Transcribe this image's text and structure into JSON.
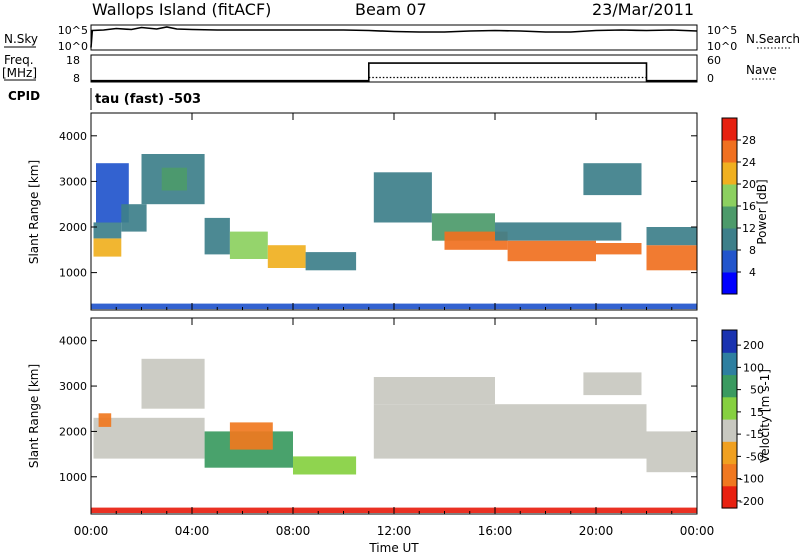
{
  "header": {
    "station": "Wallops Island (fitACF)",
    "beam": "Beam 07",
    "date": "23/Mar/2011"
  },
  "nsky_panel": {
    "left_label": "N.Sky",
    "left_ticks": [
      "10^5",
      "10^0"
    ],
    "right_ticks": [
      "10^5",
      "10^0"
    ],
    "right_label": "N.Search",
    "nsky_trace": [
      {
        "t": 0.0,
        "v": 0.5
      },
      {
        "t": 0.05,
        "v": 3.9
      },
      {
        "t": 0.5,
        "v": 4.0
      },
      {
        "t": 1.0,
        "v": 4.3
      },
      {
        "t": 1.6,
        "v": 4.1
      },
      {
        "t": 2.0,
        "v": 4.5
      },
      {
        "t": 2.6,
        "v": 4.2
      },
      {
        "t": 3.0,
        "v": 4.6
      },
      {
        "t": 3.4,
        "v": 4.2
      },
      {
        "t": 4.0,
        "v": 4.1
      },
      {
        "t": 5.0,
        "v": 4.0
      },
      {
        "t": 6.0,
        "v": 4.0
      },
      {
        "t": 7.0,
        "v": 4.0
      },
      {
        "t": 8.0,
        "v": 4.0
      },
      {
        "t": 9.0,
        "v": 4.0
      },
      {
        "t": 10.0,
        "v": 4.0
      },
      {
        "t": 11.0,
        "v": 3.9
      },
      {
        "t": 12.0,
        "v": 3.7
      },
      {
        "t": 13.0,
        "v": 3.6
      },
      {
        "t": 14.0,
        "v": 3.6
      },
      {
        "t": 15.0,
        "v": 3.8
      },
      {
        "t": 16.0,
        "v": 3.9
      },
      {
        "t": 17.0,
        "v": 3.8
      },
      {
        "t": 18.0,
        "v": 3.6
      },
      {
        "t": 19.0,
        "v": 3.6
      },
      {
        "t": 20.0,
        "v": 3.9
      },
      {
        "t": 21.0,
        "v": 4.0
      },
      {
        "t": 22.0,
        "v": 3.9
      },
      {
        "t": 23.0,
        "v": 4.0
      },
      {
        "t": 24.0,
        "v": 3.8
      }
    ]
  },
  "freq_panel": {
    "left_label_line1": "Freq.",
    "left_label_line2": "[MHz]",
    "left_ticks": [
      "18",
      "8"
    ],
    "right_ticks": [
      "60",
      "0"
    ],
    "right_label": "Nave",
    "cpid_label": "CPID",
    "cpid_text": "tau (fast) -503",
    "freq_trace": [
      {
        "t": 0.0,
        "v": 8.5
      },
      {
        "t": 11.0,
        "v": 8.5
      },
      {
        "t": 11.0,
        "v": 15.0
      },
      {
        "t": 22.0,
        "v": 15.0
      },
      {
        "t": 22.0,
        "v": 8.5
      },
      {
        "t": 24.0,
        "v": 8.5
      }
    ],
    "nave_trace": [
      {
        "t": 11.0,
        "v": 10
      },
      {
        "t": 22.0,
        "v": 10
      }
    ]
  },
  "chart_data": [
    {
      "type": "heatmap",
      "name": "power",
      "ylabel": "Slant Range [km]",
      "yticks": [
        "4000",
        "3000",
        "2000",
        "1000"
      ],
      "ylim": [
        180,
        4500
      ],
      "xlim": [
        0,
        24
      ],
      "colorbar_label": "Power [dB]",
      "colorbar_ticks": [
        "28",
        "24",
        "20",
        "16",
        "12",
        "8",
        "4"
      ],
      "colorbar_colors": [
        "#0000ff",
        "#2255cc",
        "#3d7f8a",
        "#4c9a6a",
        "#8cd060",
        "#f0b020",
        "#f07020",
        "#e62010"
      ],
      "regions": [
        {
          "t0": 0.1,
          "t1": 1.2,
          "r0": 1350,
          "r1": 1750,
          "value": 22
        },
        {
          "t0": 0.1,
          "t1": 1.2,
          "r0": 1750,
          "r1": 2100,
          "value": 10
        },
        {
          "t0": 0.2,
          "t1": 1.5,
          "r0": 2100,
          "r1": 3400,
          "value": 6
        },
        {
          "t0": 1.2,
          "t1": 2.2,
          "r0": 1900,
          "r1": 2500,
          "value": 10
        },
        {
          "t0": 2.0,
          "t1": 4.5,
          "r0": 2500,
          "r1": 3600,
          "value": 9
        },
        {
          "t0": 2.8,
          "t1": 3.8,
          "r0": 2800,
          "r1": 3300,
          "value": 13
        },
        {
          "t0": 4.5,
          "t1": 5.5,
          "r0": 1400,
          "r1": 2200,
          "value": 11
        },
        {
          "t0": 5.5,
          "t1": 7.0,
          "r0": 1300,
          "r1": 1900,
          "value": 16
        },
        {
          "t0": 7.0,
          "t1": 8.5,
          "r0": 1100,
          "r1": 1600,
          "value": 20
        },
        {
          "t0": 8.5,
          "t1": 10.5,
          "r0": 1050,
          "r1": 1450,
          "value": 9
        },
        {
          "t0": 11.2,
          "t1": 13.5,
          "r0": 2100,
          "r1": 3200,
          "value": 8
        },
        {
          "t0": 13.5,
          "t1": 16.0,
          "r0": 1700,
          "r1": 2300,
          "value": 14
        },
        {
          "t0": 14.0,
          "t1": 16.5,
          "r0": 1500,
          "r1": 1900,
          "value": 24
        },
        {
          "t0": 16.5,
          "t1": 20.0,
          "r0": 1250,
          "r1": 1700,
          "value": 27
        },
        {
          "t0": 16.0,
          "t1": 21.0,
          "r0": 1700,
          "r1": 2100,
          "value": 11
        },
        {
          "t0": 19.5,
          "t1": 21.8,
          "r0": 2700,
          "r1": 3400,
          "value": 10
        },
        {
          "t0": 20.0,
          "t1": 21.8,
          "r0": 1400,
          "r1": 1650,
          "value": 25
        },
        {
          "t0": 22.0,
          "t1": 24.0,
          "r0": 1050,
          "r1": 1600,
          "value": 26
        },
        {
          "t0": 22.0,
          "t1": 24.0,
          "r0": 1600,
          "r1": 2000,
          "value": 10
        },
        {
          "t0": 0.0,
          "t1": 24.0,
          "r0": 200,
          "r1": 320,
          "value": 6
        }
      ]
    },
    {
      "type": "heatmap",
      "name": "velocity",
      "xlabel": "Time UT",
      "ylabel": "Slant Range [km]",
      "yticks": [
        "4000",
        "3000",
        "2000",
        "1000"
      ],
      "xticks": [
        "00:00",
        "04:00",
        "08:00",
        "12:00",
        "16:00",
        "20:00",
        "00:00"
      ],
      "ylim": [
        180,
        4500
      ],
      "xlim": [
        0,
        24
      ],
      "colorbar_label": "Velocity [m s-1]",
      "colorbar_ticks": [
        "200",
        "100",
        "50",
        "15",
        "-15",
        "-50",
        "-100",
        "-200"
      ],
      "colorbar_colors": [
        "#1a33b0",
        "#2e7fa0",
        "#3a9a60",
        "#86d040",
        "#c8c8c0",
        "#f0a020",
        "#f07820",
        "#e82010"
      ],
      "regions": [
        {
          "t0": 0.1,
          "t1": 4.5,
          "r0": 1400,
          "r1": 2300,
          "value": 0
        },
        {
          "t0": 2.0,
          "t1": 4.5,
          "r0": 2500,
          "r1": 3600,
          "value": 0
        },
        {
          "t0": 0.3,
          "t1": 0.8,
          "r0": 2100,
          "r1": 2400,
          "value": -60
        },
        {
          "t0": 4.5,
          "t1": 8.0,
          "r0": 1200,
          "r1": 2000,
          "value": 35
        },
        {
          "t0": 5.5,
          "t1": 7.2,
          "r0": 1600,
          "r1": 2200,
          "value": -70
        },
        {
          "t0": 8.0,
          "t1": 10.5,
          "r0": 1050,
          "r1": 1450,
          "value": 30
        },
        {
          "t0": 11.2,
          "t1": 22.0,
          "r0": 1400,
          "r1": 2600,
          "value": 0
        },
        {
          "t0": 11.2,
          "t1": 16.0,
          "r0": 2600,
          "r1": 3200,
          "value": 0
        },
        {
          "t0": 19.5,
          "t1": 21.8,
          "r0": 2800,
          "r1": 3300,
          "value": 0
        },
        {
          "t0": 22.0,
          "t1": 24.0,
          "r0": 1100,
          "r1": 2000,
          "value": 0
        },
        {
          "t0": 0.0,
          "t1": 24.0,
          "r0": 200,
          "r1": 320,
          "value": -120
        }
      ]
    }
  ]
}
